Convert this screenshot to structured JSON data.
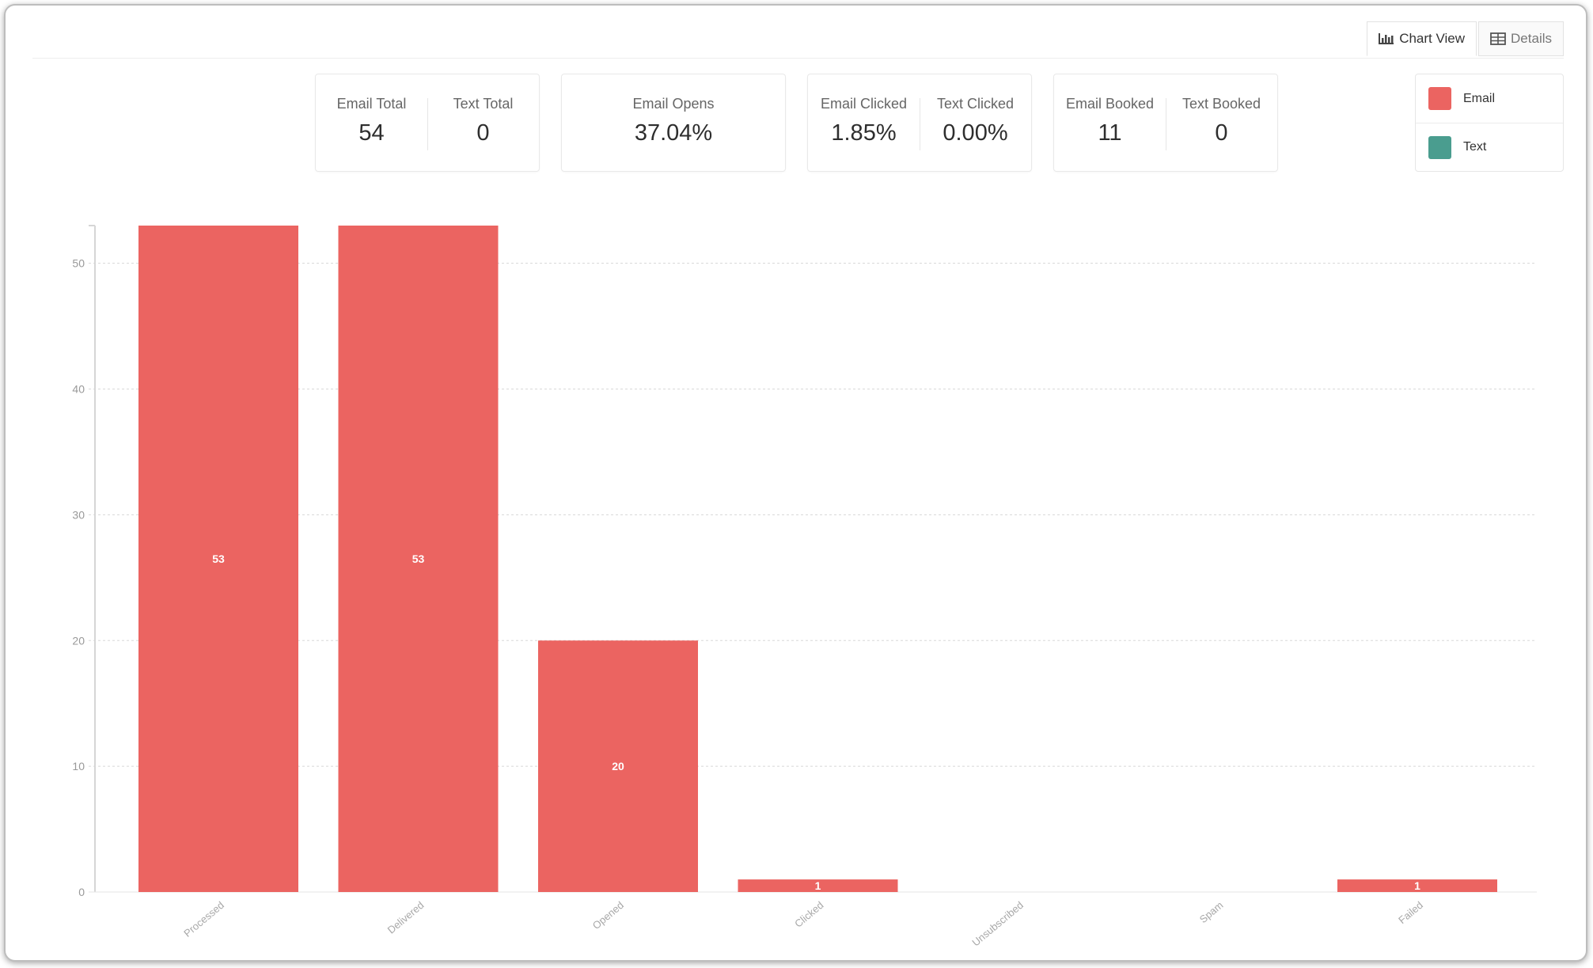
{
  "toolbar": {
    "chart_view_label": "Chart View",
    "details_label": "Details"
  },
  "stats": [
    {
      "items": [
        {
          "label": "Email Total",
          "value": "54"
        },
        {
          "label": "Text Total",
          "value": "0"
        }
      ]
    },
    {
      "items": [
        {
          "label": "Email Opens",
          "value": "37.04%"
        }
      ]
    },
    {
      "items": [
        {
          "label": "Email Clicked",
          "value": "1.85%"
        },
        {
          "label": "Text Clicked",
          "value": "0.00%"
        }
      ]
    },
    {
      "items": [
        {
          "label": "Email Booked",
          "value": "11"
        },
        {
          "label": "Text Booked",
          "value": "0"
        }
      ]
    }
  ],
  "legend": [
    {
      "label": "Email",
      "color": "#eb6461"
    },
    {
      "label": "Text",
      "color": "#4a9d8f"
    }
  ],
  "chart_data": {
    "type": "bar",
    "categories": [
      "Processed",
      "Delivered",
      "Opened",
      "Clicked",
      "Unsubscribed",
      "Spam",
      "Failed"
    ],
    "series": [
      {
        "name": "Email",
        "color": "#eb6461",
        "values": [
          53,
          53,
          20,
          1,
          0,
          0,
          1
        ]
      },
      {
        "name": "Text",
        "color": "#4a9d8f",
        "values": [
          0,
          0,
          0,
          0,
          0,
          0,
          0
        ]
      }
    ],
    "data_labels": [
      "53",
      "53",
      "20",
      "1",
      "",
      "",
      "1"
    ],
    "yticks": [
      0,
      10,
      20,
      30,
      40,
      50
    ],
    "ylim": [
      0,
      53
    ],
    "grid": true,
    "legend_position": "top-right"
  }
}
